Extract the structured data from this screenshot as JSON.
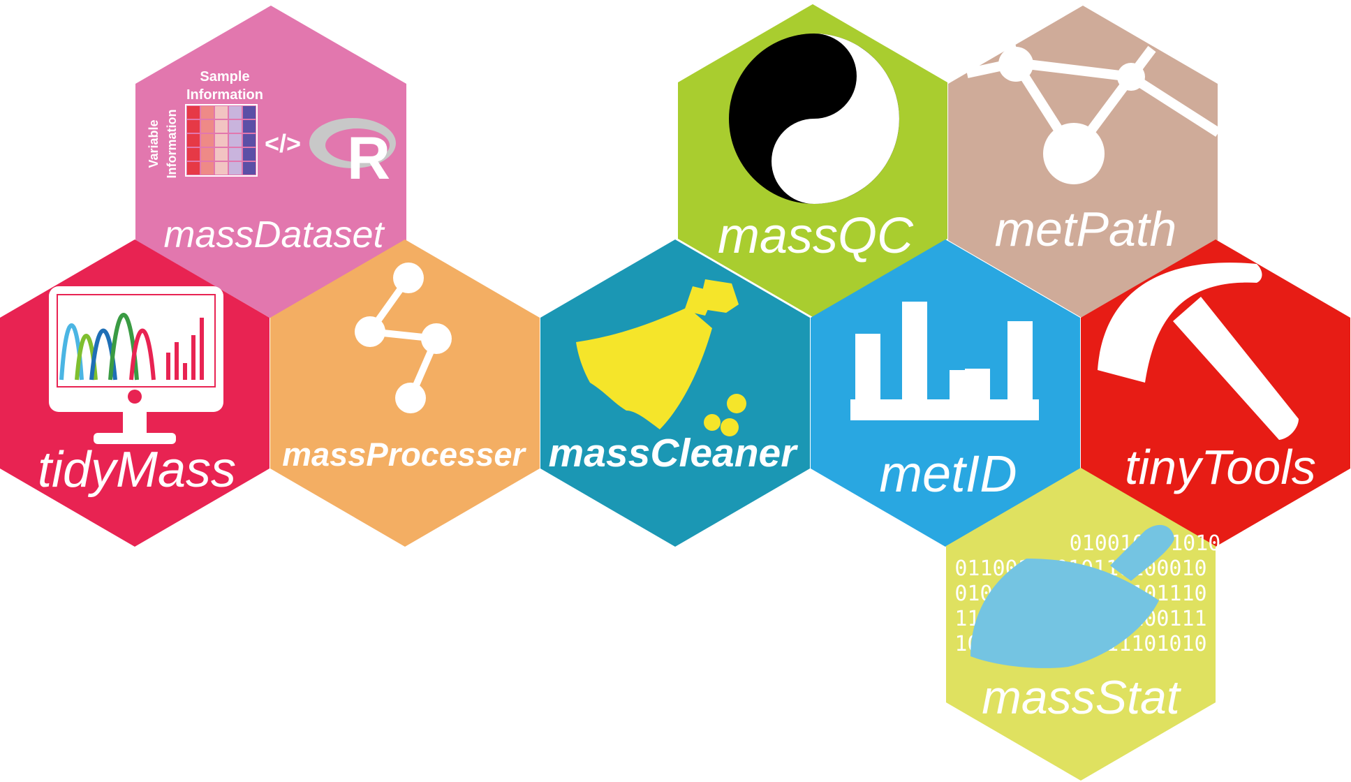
{
  "colors": {
    "massDataset": "#e277ae",
    "tidyMass": "#e82352",
    "massProcesser": "#f3ae63",
    "massCleaner": "#1b97b4",
    "massQC": "#a9cd2f",
    "metPath": "#cfab99",
    "metID": "#29a7e1",
    "tinyTools": "#e71c15",
    "massStat": "#dfe160"
  },
  "hexes": {
    "massDataset": {
      "label": "massDataset",
      "sample_info": "Sample",
      "sample_info_2": "Information",
      "variable_info": "Variable",
      "variable_info_2": "Information",
      "code_glyph": "</>",
      "r_logo": "R"
    },
    "tidyMass": {
      "label": "tidyMass"
    },
    "massProcesser": {
      "label": "massProcesser"
    },
    "massCleaner": {
      "label": "massCleaner"
    },
    "massQC": {
      "label": "massQC",
      "q": "Q",
      "c": "c"
    },
    "metPath": {
      "label": "metPath"
    },
    "metID": {
      "label": "metID"
    },
    "tinyTools": {
      "label": "tinyTools"
    },
    "massStat": {
      "label": "massStat",
      "binary_lines": [
        "010010101010",
        "01100101010110100010",
        "01001010101010101110",
        "11010100111010100111",
        "10101010100011101010"
      ]
    }
  }
}
